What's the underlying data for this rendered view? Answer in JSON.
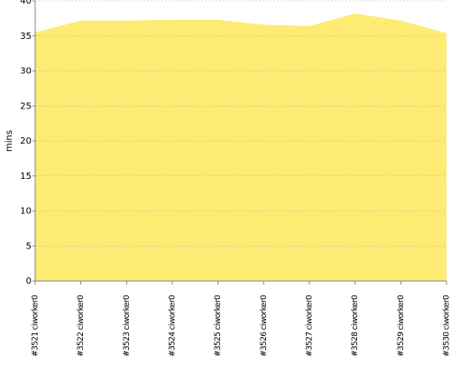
{
  "chart_data": {
    "type": "area",
    "y_label": "mins",
    "categories": [
      "#3521 ciworker0",
      "#3522 ciworker0",
      "#3523 ciworker0",
      "#3524 ciworker0",
      "#3525 ciworker0",
      "#3526 ciworker0",
      "#3527 ciworker0",
      "#3528 ciworker0",
      "#3529 ciworker0",
      "#3530 ciworker0"
    ],
    "values": [
      35.5,
      37.2,
      37.2,
      37.3,
      37.3,
      36.6,
      36.4,
      38.2,
      37.2,
      35.4
    ],
    "color": "#fdeb74",
    "ylim": [
      0,
      40
    ],
    "yticks": [
      0,
      5,
      10,
      15,
      20,
      25,
      30,
      35,
      40
    ],
    "grid": true
  }
}
